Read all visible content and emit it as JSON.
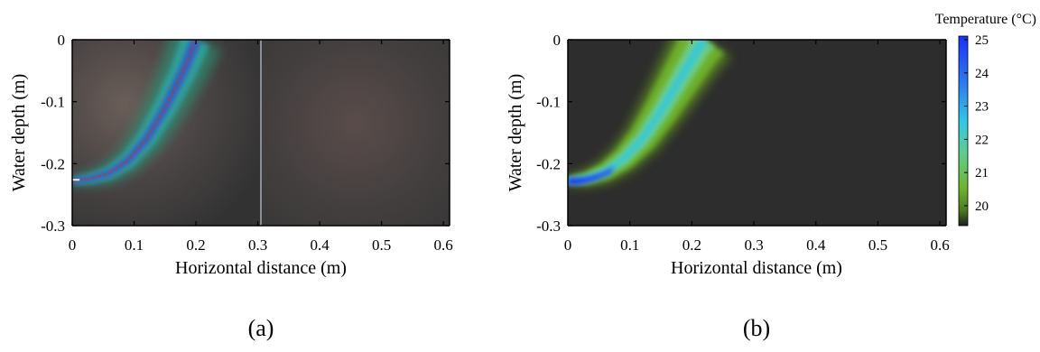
{
  "chart_data": [
    {
      "type": "heatmap",
      "caption": "(a)",
      "xlabel": "Horizontal distance (m)",
      "ylabel": "Water depth (m)",
      "xlim": [
        0,
        0.61
      ],
      "ylim": [
        -0.3,
        0
      ],
      "xticks": [
        0,
        0.1,
        0.2,
        0.3,
        0.4,
        0.5,
        0.6
      ],
      "xtick_labels": [
        "0",
        "0.1",
        "0.2",
        "0.3",
        "0.4",
        "0.5",
        "0.6"
      ],
      "yticks": [
        0,
        -0.1,
        -0.2,
        -0.3
      ],
      "ytick_labels": [
        "0",
        "-0.1",
        "-0.2",
        "-0.3"
      ],
      "plume_centerline": {
        "x": [
          0.0,
          0.03,
          0.06,
          0.09,
          0.12,
          0.15,
          0.18,
          0.2
        ],
        "y": [
          -0.228,
          -0.224,
          -0.215,
          -0.195,
          -0.16,
          -0.11,
          -0.05,
          0.0
        ]
      },
      "background": "photograph"
    },
    {
      "type": "heatmap",
      "caption": "(b)",
      "xlabel": "Horizontal distance (m)",
      "ylabel": "Water depth (m)",
      "xlim": [
        0,
        0.61
      ],
      "ylim": [
        -0.3,
        0
      ],
      "xticks": [
        0,
        0.1,
        0.2,
        0.3,
        0.4,
        0.5,
        0.6
      ],
      "xtick_labels": [
        "0",
        "0.1",
        "0.2",
        "0.3",
        "0.4",
        "0.5",
        "0.6"
      ],
      "yticks": [
        0,
        -0.1,
        -0.2,
        -0.3
      ],
      "ytick_labels": [
        "0",
        "-0.1",
        "-0.2",
        "-0.3"
      ],
      "plume_centerline": {
        "x": [
          0.0,
          0.03,
          0.06,
          0.09,
          0.12,
          0.15,
          0.18,
          0.21,
          0.22
        ],
        "y": [
          -0.228,
          -0.224,
          -0.213,
          -0.192,
          -0.16,
          -0.115,
          -0.065,
          -0.015,
          0.0
        ]
      },
      "colorbar": {
        "title": "Temperature (°C)",
        "range": [
          19.4,
          25
        ],
        "ticks": [
          20,
          21,
          22,
          23,
          24,
          25
        ],
        "tick_labels": [
          "20",
          "21",
          "22",
          "23",
          "24",
          "25"
        ]
      },
      "colors": {
        "background": "#2d2d2d",
        "hot": "#1a30ff",
        "warm": "#2fc8e8",
        "cool": "#6fb52a",
        "cold": "#1e1e1e"
      }
    }
  ]
}
